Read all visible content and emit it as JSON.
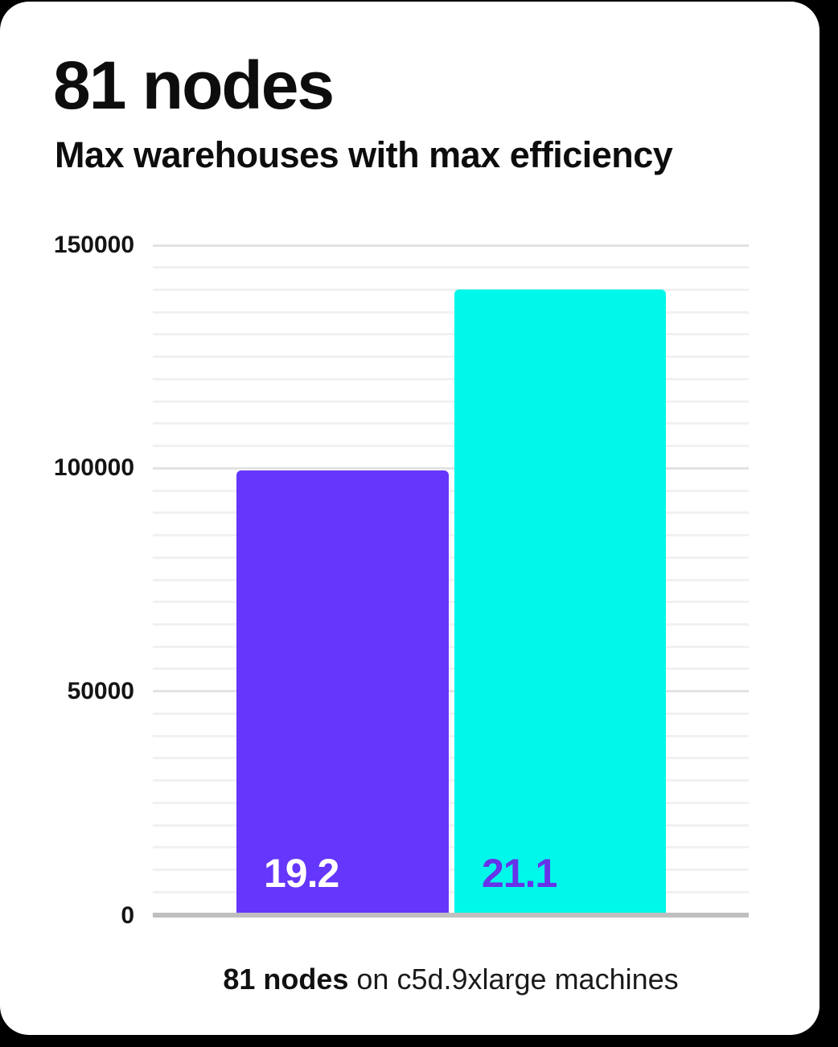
{
  "page": {
    "background_color": "#000000",
    "card_background_color": "#ffffff"
  },
  "chart_data": {
    "type": "bar",
    "title": "81 nodes",
    "subtitle": "Max warehouses with max efficiency",
    "caption": {
      "bold": "81 nodes",
      "regular": " on c5d.9xlarge machines"
    },
    "legend": "none",
    "grid": "horizontal-only",
    "y_axis": {
      "min": 0,
      "max": 150000,
      "major_tick_step": 50000,
      "minor_gridline_step": 5000,
      "tick_values": [
        150000,
        100000,
        50000,
        0
      ]
    },
    "bars": [
      {
        "name": "left-bar",
        "value": 99500,
        "inner_label": "19.2",
        "color": "#6536fb",
        "label_color": "#ffffff"
      },
      {
        "name": "right-bar",
        "value": 140100,
        "inner_label": "21.1",
        "color": "#00f8ea",
        "label_color": "#6633e8"
      }
    ],
    "colors": {
      "axis_baseline": "#bfbfbf",
      "major_gridline": "#e3e3e3",
      "minor_gridline": "#f1f1f1",
      "title_text": "#0d0d0d",
      "tick_text": "#141414",
      "caption_text": "#1a1a1a"
    }
  }
}
